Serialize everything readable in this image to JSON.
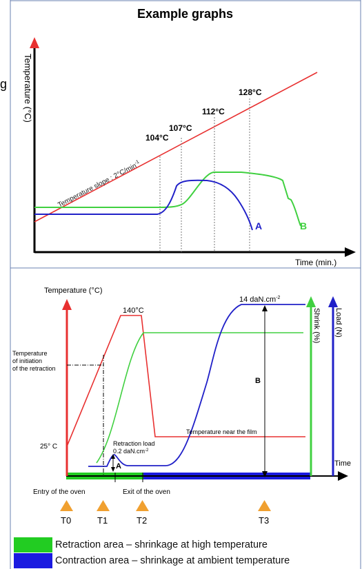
{
  "title": "Example graphs",
  "stray_letter": "g",
  "graph1": {
    "y_axis_label": "Temperature (°C)",
    "x_axis_label": "Time (min.)",
    "slope_label": "Temperature slope : 2°C/min",
    "slope_sup": "-1",
    "temps": [
      "104°C",
      "107°C",
      "112°C",
      "128°C"
    ],
    "curve_a_label": "A",
    "curve_b_label": "B",
    "colors": {
      "temperature": "#e83030",
      "curve_a": "#2020c8",
      "curve_b": "#40d040",
      "axis": "#000000"
    }
  },
  "graph2": {
    "y_axis_label": "Temperature (°C)",
    "shrink_label": "Shrink (%)",
    "load_label": "Load (N)",
    "time_label": "Time",
    "peak_temp": "140°C",
    "start_temp": "25° C",
    "initiation_label": [
      "Temperature",
      "of initiation",
      "of the retraction"
    ],
    "retraction_load_label": "Retraction load",
    "retraction_load_value": "0.2 daN.cm",
    "retraction_load_sup": "-2",
    "max_load_value": "14 daN.cm",
    "max_load_sup": "-2",
    "near_film_label": "Temperature near the film",
    "marker_a": "A",
    "marker_b": "B",
    "entry_label": "Entry of the oven",
    "exit_label": "Exit of the oven",
    "time_markers": [
      "T0",
      "T1",
      "T2",
      "T3"
    ],
    "colors": {
      "temperature": "#e83030",
      "shrink": "#40d040",
      "load": "#2020c8",
      "marker": "#f0a030"
    }
  },
  "legend": [
    {
      "color": "#22cc22",
      "label": "Retraction area – shrinkage at high temperature"
    },
    {
      "color": "#1a1ae0",
      "label": "Contraction area – shrinkage at ambient temperature"
    }
  ]
}
